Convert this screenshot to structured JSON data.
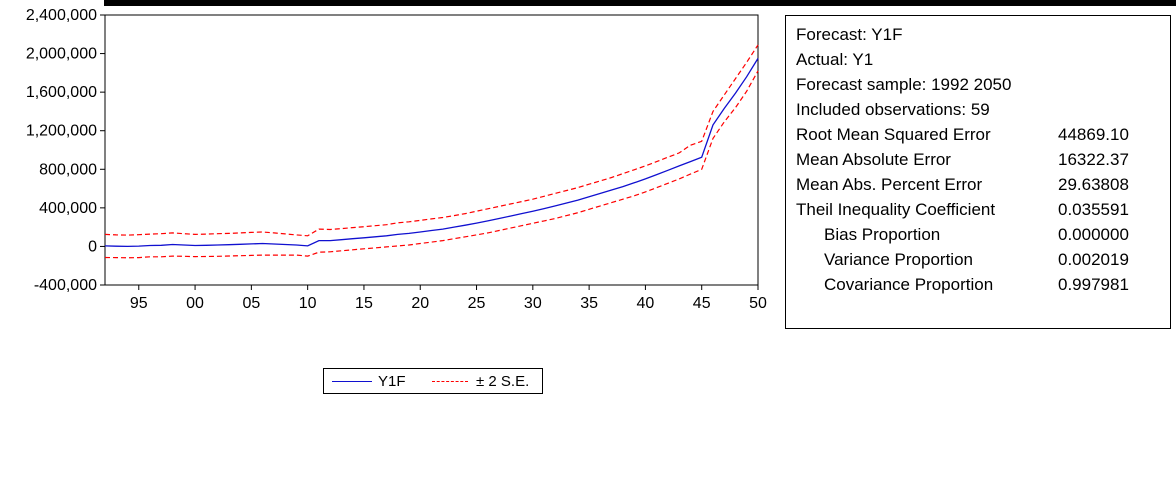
{
  "chart_data": {
    "type": "line",
    "x_ticks": [
      "95",
      "00",
      "05",
      "10",
      "15",
      "20",
      "25",
      "30",
      "35",
      "40",
      "45",
      "50"
    ],
    "x_tick_years": [
      1995,
      2000,
      2005,
      2010,
      2015,
      2020,
      2025,
      2030,
      2035,
      2040,
      2045,
      2050
    ],
    "xlim": [
      1992,
      2050
    ],
    "ylim": [
      -400000,
      2400000
    ],
    "y_ticks": [
      -400000,
      0,
      400000,
      800000,
      1200000,
      1600000,
      2000000,
      2400000
    ],
    "y_tick_labels": [
      "-400,000",
      "0",
      "400,000",
      "800,000",
      "1,200,000",
      "1,600,000",
      "2,000,000",
      "2,400,000"
    ],
    "grid": false,
    "legend_position": "bottom-center",
    "colors": {
      "forecast": "#1010d0",
      "bands": "#ff0000"
    },
    "series": [
      {
        "name": "Y1F",
        "style": "solid",
        "x": [
          1992,
          1993,
          1994,
          1995,
          1996,
          1997,
          1998,
          1999,
          2000,
          2001,
          2002,
          2003,
          2004,
          2005,
          2006,
          2007,
          2008,
          2009,
          2010,
          2011,
          2012,
          2013,
          2014,
          2015,
          2016,
          2017,
          2018,
          2019,
          2020,
          2021,
          2022,
          2023,
          2024,
          2025,
          2026,
          2027,
          2028,
          2029,
          2030,
          2031,
          2032,
          2033,
          2034,
          2035,
          2036,
          2037,
          2038,
          2039,
          2040,
          2041,
          2042,
          2043,
          2044,
          2045,
          2046,
          2047,
          2048,
          2049,
          2050
        ],
        "y": [
          5000,
          2000,
          0,
          3000,
          10000,
          12000,
          20000,
          15000,
          10000,
          12000,
          15000,
          18000,
          22000,
          26000,
          30000,
          25000,
          20000,
          15000,
          5000,
          60000,
          60000,
          70000,
          80000,
          90000,
          100000,
          110000,
          125000,
          135000,
          150000,
          165000,
          180000,
          200000,
          220000,
          242000,
          265000,
          290000,
          315000,
          340000,
          365000,
          392000,
          420000,
          450000,
          480000,
          515000,
          550000,
          585000,
          620000,
          660000,
          700000,
          745000,
          790000,
          835000,
          880000,
          925000,
          1260000,
          1430000,
          1590000,
          1760000,
          1950000
        ]
      },
      {
        "name": "± 2 S.E.",
        "style": "dashed",
        "x": [
          1992,
          1993,
          1994,
          1995,
          1996,
          1997,
          1998,
          1999,
          2000,
          2001,
          2002,
          2003,
          2004,
          2005,
          2006,
          2007,
          2008,
          2009,
          2010,
          2011,
          2012,
          2013,
          2014,
          2015,
          2016,
          2017,
          2018,
          2019,
          2020,
          2021,
          2022,
          2023,
          2024,
          2025,
          2026,
          2027,
          2028,
          2029,
          2030,
          2031,
          2032,
          2033,
          2034,
          2035,
          2036,
          2037,
          2038,
          2039,
          2040,
          2041,
          2042,
          2043,
          2044,
          2045,
          2046,
          2047,
          2048,
          2049,
          2050
        ],
        "upper": [
          125000,
          120000,
          118000,
          122000,
          128000,
          132000,
          140000,
          132000,
          125000,
          128000,
          132000,
          135000,
          140000,
          145000,
          150000,
          140000,
          130000,
          120000,
          110000,
          180000,
          176000,
          185000,
          195000,
          205000,
          215000,
          225000,
          245000,
          255000,
          270000,
          285000,
          300000,
          320000,
          340000,
          365000,
          390000,
          415000,
          440000,
          465000,
          490000,
          520000,
          550000,
          580000,
          610000,
          645000,
          680000,
          715000,
          755000,
          795000,
          835000,
          880000,
          925000,
          970000,
          1050000,
          1090000,
          1400000,
          1570000,
          1740000,
          1910000,
          2090000
        ],
        "lower": [
          -115000,
          -116000,
          -118000,
          -116000,
          -108000,
          -108000,
          -100000,
          -102000,
          -105000,
          -104000,
          -102000,
          -99000,
          -96000,
          -93000,
          -90000,
          -90000,
          -90000,
          -90000,
          -100000,
          -60000,
          -56000,
          -45000,
          -35000,
          -25000,
          -15000,
          -5000,
          5000,
          15000,
          30000,
          45000,
          60000,
          80000,
          100000,
          120000,
          140000,
          165000,
          190000,
          215000,
          240000,
          265000,
          290000,
          320000,
          350000,
          385000,
          420000,
          455000,
          490000,
          525000,
          565000,
          610000,
          655000,
          700000,
          750000,
          800000,
          1120000,
          1290000,
          1440000,
          1610000,
          1820000
        ]
      }
    ]
  },
  "legend": {
    "forecast_label": "Y1F",
    "bands_label": "± 2 S.E."
  },
  "stats": {
    "forecast": "Forecast: Y1F",
    "actual": "Actual: Y1",
    "sample": "Forecast sample: 1992 2050",
    "observations": "Included observations: 59",
    "rows": [
      {
        "label": "Root Mean Squared Error",
        "value": "44869.10"
      },
      {
        "label": "Mean Absolute Error",
        "value": "16322.37"
      },
      {
        "label": "Mean Abs. Percent Error",
        "value": "29.63808"
      },
      {
        "label": "Theil Inequality Coefficient",
        "value": "0.035591"
      },
      {
        "label": "Bias Proportion",
        "value": "0.000000"
      },
      {
        "label": "Variance Proportion",
        "value": "0.002019"
      },
      {
        "label": "Covariance Proportion",
        "value": "0.997981"
      }
    ]
  }
}
